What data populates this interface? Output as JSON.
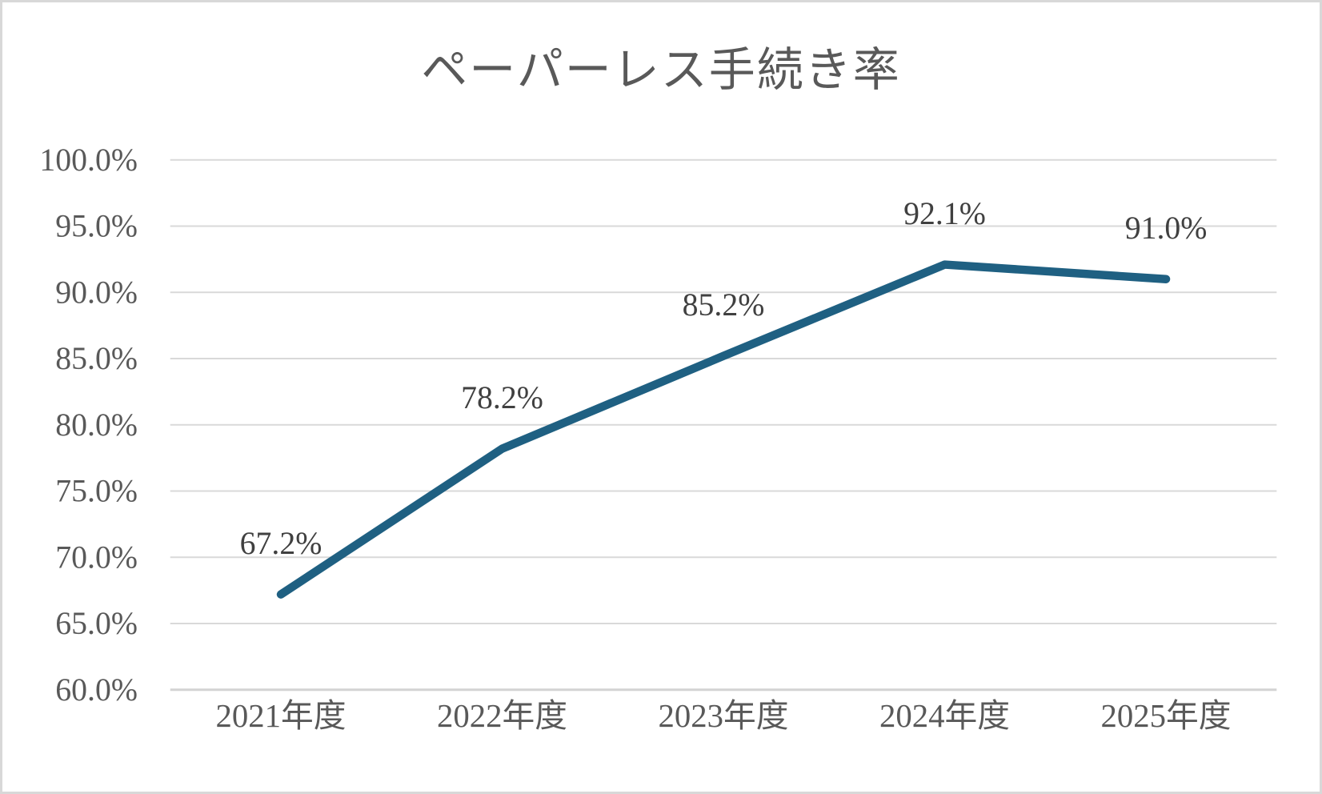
{
  "chart_data": {
    "type": "line",
    "title": "ペーパーレス手続き率",
    "categories": [
      "2021年度",
      "2022年度",
      "2023年度",
      "2024年度",
      "2025年度"
    ],
    "series": [
      {
        "name": "ペーパーレス手続き率",
        "values": [
          67.2,
          78.2,
          85.2,
          92.1,
          91.0
        ],
        "data_labels": [
          "67.2%",
          "78.2%",
          "85.2%",
          "92.1%",
          "91.0%"
        ]
      }
    ],
    "xlabel": "",
    "ylabel": "",
    "ylim": [
      60,
      100
    ],
    "y_step": 5,
    "y_tick_labels": [
      "100.0%",
      "95.0%",
      "90.0%",
      "85.0%",
      "80.0%",
      "75.0%",
      "70.0%",
      "65.0%",
      "60.0%"
    ],
    "grid": true,
    "legend": false,
    "data_label_position": "above",
    "colors": {
      "series_line": "#1F6082",
      "gridline": "#D9D9D9",
      "axis_line": "#D3D3D3",
      "title_text": "#595959",
      "tick_text": "#595959",
      "data_label_text": "#404040",
      "background": "#FFFFFF",
      "card_border": "#D8D8D8"
    }
  }
}
